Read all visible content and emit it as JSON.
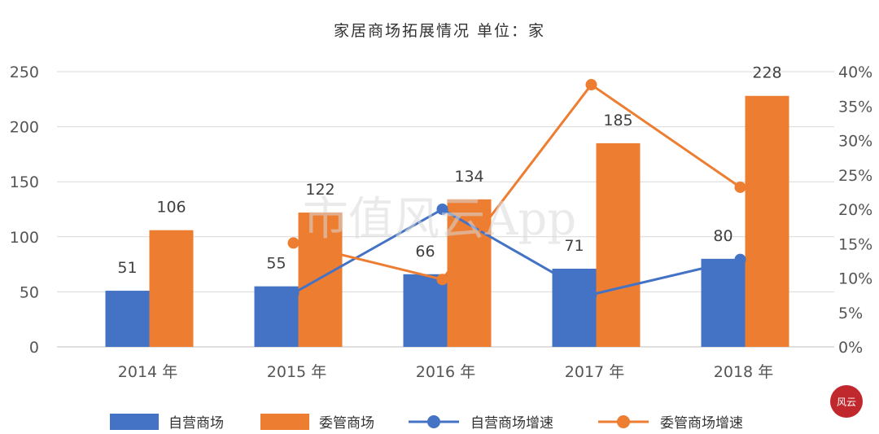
{
  "chart_data": {
    "type": "bar",
    "title": "家居商场拓展情况    单位：家",
    "categories": [
      "2014 年",
      "2015 年",
      "2016 年",
      "2017 年",
      "2018 年"
    ],
    "series": [
      {
        "name": "自营商场",
        "kind": "bar",
        "axis": "left",
        "color": "#4472C4",
        "values": [
          51,
          55,
          66,
          71,
          80
        ]
      },
      {
        "name": "委管商场",
        "kind": "bar",
        "axis": "left",
        "color": "#ED7D31",
        "values": [
          106,
          122,
          134,
          185,
          228
        ]
      },
      {
        "name": "自营商场增速",
        "kind": "line",
        "axis": "right",
        "color": "#4472C4",
        "values": [
          null,
          7.8,
          20.0,
          7.6,
          12.7
        ]
      },
      {
        "name": "委管商场增速",
        "kind": "line",
        "axis": "right",
        "color": "#ED7D31",
        "values": [
          null,
          15.1,
          9.8,
          38.1,
          23.2
        ]
      }
    ],
    "data_labels": {
      "bar_left": [
        "51",
        "55",
        "66",
        "71",
        "80"
      ],
      "bar_right": [
        "106",
        "122",
        "134",
        "185",
        "228"
      ]
    },
    "y_left": {
      "ylim": [
        0,
        250
      ],
      "ticks": [
        "0",
        "50",
        "100",
        "150",
        "200",
        "250"
      ]
    },
    "y_right": {
      "ylim": [
        0,
        40
      ],
      "ticks": [
        "0%",
        "5%",
        "10%",
        "15%",
        "20%",
        "25%",
        "30%",
        "35%",
        "40%"
      ]
    },
    "grid": true,
    "legend_position": "bottom"
  },
  "watermark": "市值风云App",
  "logo_text": "风云"
}
